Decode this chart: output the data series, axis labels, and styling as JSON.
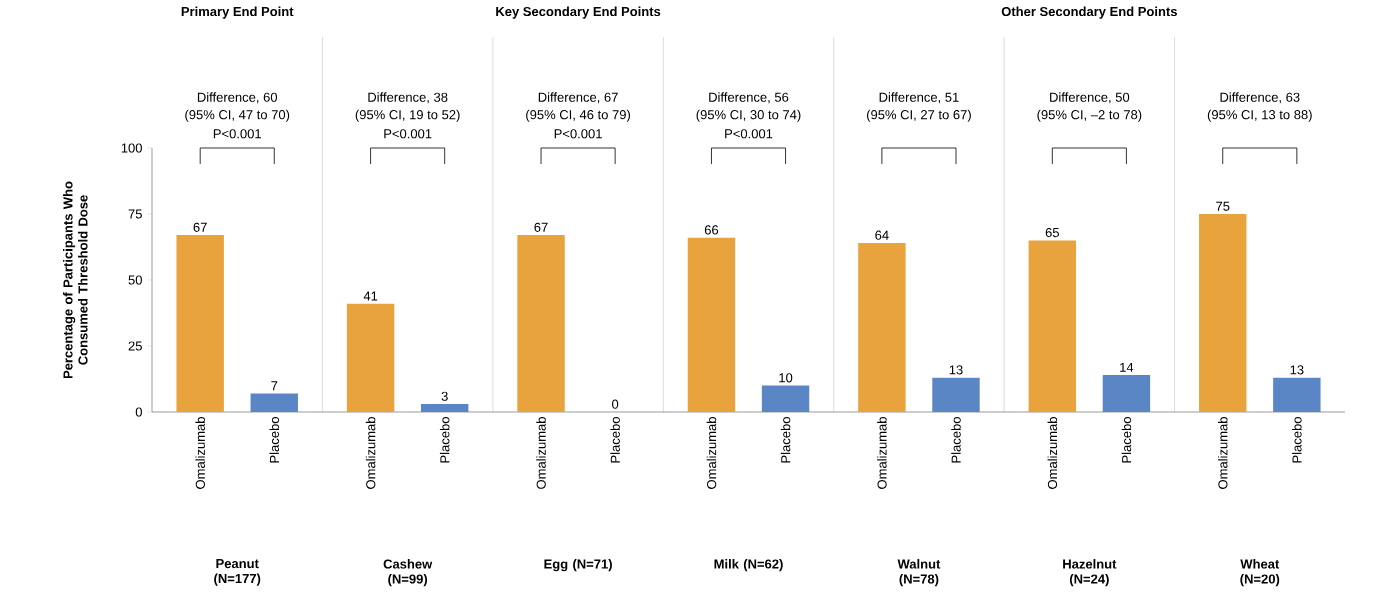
{
  "chart_data": [
    {
      "type": "bar",
      "title": "Primary End Point",
      "ylabel": "Percentage of Participants Who Consumed Threshold Dose",
      "xlabel": "Peanut (N=177)",
      "categories": [
        "Omalizumab",
        "Placebo"
      ],
      "values": [
        67,
        7
      ],
      "colors": [
        "#e8a33d",
        "#5b86c5"
      ],
      "ylim": [
        0,
        100
      ],
      "yticks": [
        0,
        25,
        50,
        75,
        100
      ],
      "data_labels": true,
      "annotations": [
        "Difference, 60",
        "(95% CI, 47 to 70)",
        "P<0.001"
      ]
    },
    {
      "type": "bar",
      "xlabel": "Cashew (N=99)",
      "categories": [
        "Omalizumab",
        "Placebo"
      ],
      "values": [
        41,
        3
      ],
      "colors": [
        "#e8a33d",
        "#5b86c5"
      ],
      "tick_labels": "x",
      "data_labels": true,
      "annotations": [
        "Difference, 38",
        "(95% CI, 19 to 52)",
        "P<0.001"
      ]
    },
    {
      "type": "bar",
      "title": "Key Secondary End Points",
      "xlabel": "Egg (N=71)",
      "categories": [
        "Omalizumab",
        "Placebo"
      ],
      "values": [
        67,
        0
      ],
      "colors": [
        "#e8a33d",
        "#5b86c5"
      ],
      "tick_labels": "x",
      "data_labels": true,
      "annotations": [
        "Difference, 67",
        "(95% CI, 46 to 79)",
        "P<0.001"
      ]
    },
    {
      "type": "bar",
      "xlabel": "Milk (N=62)",
      "categories": [
        "Omalizumab",
        "Placebo"
      ],
      "values": [
        66,
        10
      ],
      "colors": [
        "#e8a33d",
        "#5b86c5"
      ],
      "tick_labels": "x",
      "data_labels": true,
      "annotations": [
        "Difference, 56",
        "(95% CI, 30 to 74)",
        "P<0.001"
      ]
    },
    {
      "type": "bar",
      "xlabel": "Walnut (N=78)",
      "categories": [
        "Omalizumab",
        "Placebo"
      ],
      "values": [
        64,
        13
      ],
      "colors": [
        "#e8a33d",
        "#5b86c5"
      ],
      "tick_labels": "x",
      "data_labels": true,
      "annotations": [
        "Difference, 51",
        "(95% CI, 27 to 67)"
      ]
    },
    {
      "type": "bar",
      "title": "Other Secondary End Points",
      "xlabel": "Hazelnut (N=24)",
      "categories": [
        "Omalizumab",
        "Placebo"
      ],
      "values": [
        65,
        14
      ],
      "colors": [
        "#e8a33d",
        "#5b86c5"
      ],
      "tick_labels": "x",
      "data_labels": true,
      "annotations": [
        "Difference, 50",
        "(95% CI, –2 to 78)"
      ]
    },
    {
      "type": "bar",
      "xlabel": "Wheat (N=20)",
      "categories": [
        "Omalizumab",
        "Placebo"
      ],
      "values": [
        75,
        13
      ],
      "colors": [
        "#e8a33d",
        "#5b86c5"
      ],
      "tick_labels": "x",
      "data_labels": true,
      "annotations": [
        "Difference, 63",
        "(95% CI, 13 to 88)"
      ]
    }
  ]
}
